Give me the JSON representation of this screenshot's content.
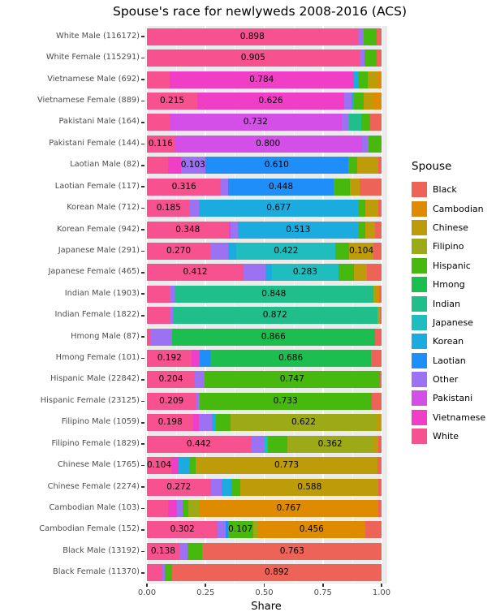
{
  "chart_data": {
    "type": "bar",
    "subtype": "horizontal-stacked-fill",
    "title": "Spouse's race for newlyweds 2008-2016 (ACS)",
    "xlabel": "Share",
    "xlim": [
      0,
      1
    ],
    "x_ticks": [
      {
        "value": 0.0,
        "label": "0.00"
      },
      {
        "value": 0.25,
        "label": "0.25"
      },
      {
        "value": 0.5,
        "label": "0.50"
      },
      {
        "value": 0.75,
        "label": "0.75"
      },
      {
        "value": 1.0,
        "label": "1.00"
      }
    ],
    "grid": {
      "panel_bg": "#EBEBEB",
      "major": "#FFFFFF",
      "minor": "#FFFFFF",
      "minor_ticks": [
        0.125,
        0.375,
        0.625,
        0.875
      ]
    },
    "segment_label_threshold": 0.1,
    "legend_title": "Spouse",
    "legend": [
      {
        "name": "Black",
        "color": "#ED6358"
      },
      {
        "name": "Cambodian",
        "color": "#DE8B00"
      },
      {
        "name": "Chinese",
        "color": "#BD9B09"
      },
      {
        "name": "Filipino",
        "color": "#9DAA17"
      },
      {
        "name": "Hispanic",
        "color": "#47B80E"
      },
      {
        "name": "Hmong",
        "color": "#1CBE4F"
      },
      {
        "name": "Indian",
        "color": "#20BE8A"
      },
      {
        "name": "Japanese",
        "color": "#1FBDBE"
      },
      {
        "name": "Korean",
        "color": "#1BABDF"
      },
      {
        "name": "Laotian",
        "color": "#1F8EF9"
      },
      {
        "name": "Other",
        "color": "#9C72F2"
      },
      {
        "name": "Pakistani",
        "color": "#D44FE8"
      },
      {
        "name": "Vietnamese",
        "color": "#F13EC6"
      },
      {
        "name": "White",
        "color": "#F8518F"
      }
    ],
    "stack_order_left_to_right": [
      "White",
      "Vietnamese",
      "Pakistani",
      "Other",
      "Laotian",
      "Korean",
      "Japanese",
      "Indian",
      "Hmong",
      "Hispanic",
      "Filipino",
      "Chinese",
      "Cambodian",
      "Black"
    ],
    "rows": [
      {
        "label": "White Male (116172)",
        "segments": [
          {
            "race": "White",
            "value": 0.898
          },
          {
            "race": "Other",
            "value": 0.026
          },
          {
            "race": "Hispanic",
            "value": 0.057
          },
          {
            "race": "Black",
            "value": 0.019
          }
        ]
      },
      {
        "label": "White Female (115291)",
        "segments": [
          {
            "race": "White",
            "value": 0.905
          },
          {
            "race": "Other",
            "value": 0.021
          },
          {
            "race": "Hispanic",
            "value": 0.053
          },
          {
            "race": "Black",
            "value": 0.021
          }
        ]
      },
      {
        "label": "Vietnamese Male (692)",
        "segments": [
          {
            "race": "White",
            "value": 0.097
          },
          {
            "race": "Vietnamese",
            "value": 0.784
          },
          {
            "race": "Korean",
            "value": 0.02
          },
          {
            "race": "Hispanic",
            "value": 0.041
          },
          {
            "race": "Chinese",
            "value": 0.045
          },
          {
            "race": "Cambodian",
            "value": 0.013
          }
        ]
      },
      {
        "label": "Vietnamese Female (889)",
        "segments": [
          {
            "race": "White",
            "value": 0.215
          },
          {
            "race": "Vietnamese",
            "value": 0.626
          },
          {
            "race": "Other",
            "value": 0.03
          },
          {
            "race": "Korean",
            "value": 0.012
          },
          {
            "race": "Hispanic",
            "value": 0.04
          },
          {
            "race": "Chinese",
            "value": 0.04
          },
          {
            "race": "Cambodian",
            "value": 0.037
          }
        ]
      },
      {
        "label": "Pakistani Male (164)",
        "segments": [
          {
            "race": "White",
            "value": 0.097
          },
          {
            "race": "Pakistani",
            "value": 0.732
          },
          {
            "race": "Other",
            "value": 0.032
          },
          {
            "race": "Indian",
            "value": 0.052
          },
          {
            "race": "Hispanic",
            "value": 0.037
          },
          {
            "race": "Black",
            "value": 0.05
          }
        ]
      },
      {
        "label": "Pakistani Female (144)",
        "segments": [
          {
            "race": "White",
            "value": 0.116
          },
          {
            "race": "Pakistani",
            "value": 0.8
          },
          {
            "race": "Other",
            "value": 0.03
          },
          {
            "race": "Hispanic",
            "value": 0.054
          }
        ]
      },
      {
        "label": "Laotian Male (82)",
        "segments": [
          {
            "race": "White",
            "value": 0.09
          },
          {
            "race": "Vietnamese",
            "value": 0.055
          },
          {
            "race": "Other",
            "value": 0.103
          },
          {
            "race": "Laotian",
            "value": 0.61
          },
          {
            "race": "Hispanic",
            "value": 0.038
          },
          {
            "race": "Chinese",
            "value": 0.089
          },
          {
            "race": "Black",
            "value": 0.015
          }
        ]
      },
      {
        "label": "Laotian Female (117)",
        "segments": [
          {
            "race": "White",
            "value": 0.316
          },
          {
            "race": "Other",
            "value": 0.031
          },
          {
            "race": "Laotian",
            "value": 0.448
          },
          {
            "race": "Hispanic",
            "value": 0.069
          },
          {
            "race": "Chinese",
            "value": 0.041
          },
          {
            "race": "Black",
            "value": 0.095
          }
        ]
      },
      {
        "label": "Korean Male (712)",
        "segments": [
          {
            "race": "White",
            "value": 0.185
          },
          {
            "race": "Other",
            "value": 0.038
          },
          {
            "race": "Korean",
            "value": 0.677
          },
          {
            "race": "Hispanic",
            "value": 0.03
          },
          {
            "race": "Chinese",
            "value": 0.055
          },
          {
            "race": "Black",
            "value": 0.015
          }
        ]
      },
      {
        "label": "Korean Female (942)",
        "segments": [
          {
            "race": "White",
            "value": 0.348
          },
          {
            "race": "Vietnamese",
            "value": 0.01
          },
          {
            "race": "Other",
            "value": 0.03
          },
          {
            "race": "Korean",
            "value": 0.513
          },
          {
            "race": "Hispanic",
            "value": 0.03
          },
          {
            "race": "Chinese",
            "value": 0.042
          },
          {
            "race": "Black",
            "value": 0.027
          }
        ]
      },
      {
        "label": "Japanese Male (291)",
        "segments": [
          {
            "race": "White",
            "value": 0.27
          },
          {
            "race": "Other",
            "value": 0.077
          },
          {
            "race": "Korean",
            "value": 0.035
          },
          {
            "race": "Japanese",
            "value": 0.422
          },
          {
            "race": "Hispanic",
            "value": 0.058
          },
          {
            "race": "Chinese",
            "value": 0.104
          },
          {
            "race": "Black",
            "value": 0.034
          }
        ]
      },
      {
        "label": "Japanese Female (465)",
        "segments": [
          {
            "race": "White",
            "value": 0.412
          },
          {
            "race": "Other",
            "value": 0.092
          },
          {
            "race": "Korean",
            "value": 0.029
          },
          {
            "race": "Japanese",
            "value": 0.283
          },
          {
            "race": "Hispanic",
            "value": 0.066
          },
          {
            "race": "Chinese",
            "value": 0.057
          },
          {
            "race": "Black",
            "value": 0.061
          }
        ]
      },
      {
        "label": "Indian Male (1903)",
        "segments": [
          {
            "race": "White",
            "value": 0.098
          },
          {
            "race": "Other",
            "value": 0.019
          },
          {
            "race": "Indian",
            "value": 0.848
          },
          {
            "race": "Filipino",
            "value": 0.015
          },
          {
            "race": "Cambodian",
            "value": 0.01
          },
          {
            "race": "Black",
            "value": 0.01
          }
        ]
      },
      {
        "label": "Indian Female (1822)",
        "segments": [
          {
            "race": "White",
            "value": 0.098
          },
          {
            "race": "Other",
            "value": 0.012
          },
          {
            "race": "Indian",
            "value": 0.872
          },
          {
            "race": "Filipino",
            "value": 0.01
          },
          {
            "race": "Black",
            "value": 0.008
          }
        ]
      },
      {
        "label": "Hmong Male (87)",
        "segments": [
          {
            "race": "White",
            "value": 0.015
          },
          {
            "race": "Other",
            "value": 0.091
          },
          {
            "race": "Hmong",
            "value": 0.866
          },
          {
            "race": "Black",
            "value": 0.028
          }
        ]
      },
      {
        "label": "Hmong Female (101)",
        "segments": [
          {
            "race": "White",
            "value": 0.192
          },
          {
            "race": "Vietnamese",
            "value": 0.033
          },
          {
            "race": "Laotian",
            "value": 0.045
          },
          {
            "race": "Hmong",
            "value": 0.686
          },
          {
            "race": "Black",
            "value": 0.044
          }
        ]
      },
      {
        "label": "Hispanic Male (22842)",
        "segments": [
          {
            "race": "White",
            "value": 0.204
          },
          {
            "race": "Other",
            "value": 0.041
          },
          {
            "race": "Hispanic",
            "value": 0.747
          },
          {
            "race": "Black",
            "value": 0.008
          }
        ]
      },
      {
        "label": "Hispanic Female (23125)",
        "segments": [
          {
            "race": "White",
            "value": 0.209
          },
          {
            "race": "Other",
            "value": 0.015
          },
          {
            "race": "Hispanic",
            "value": 0.733
          },
          {
            "race": "Black",
            "value": 0.043
          }
        ]
      },
      {
        "label": "Filipino Male (1059)",
        "segments": [
          {
            "race": "White",
            "value": 0.198
          },
          {
            "race": "Vietnamese",
            "value": 0.023
          },
          {
            "race": "Other",
            "value": 0.055
          },
          {
            "race": "Korean",
            "value": 0.018
          },
          {
            "race": "Hispanic",
            "value": 0.063
          },
          {
            "race": "Filipino",
            "value": 0.622
          },
          {
            "race": "Chinese",
            "value": 0.021
          }
        ]
      },
      {
        "label": "Filipino Female (1829)",
        "segments": [
          {
            "race": "White",
            "value": 0.442
          },
          {
            "race": "Other",
            "value": 0.058
          },
          {
            "race": "Japanese",
            "value": 0.014
          },
          {
            "race": "Hispanic",
            "value": 0.086
          },
          {
            "race": "Filipino",
            "value": 0.362
          },
          {
            "race": "Chinese",
            "value": 0.023
          },
          {
            "race": "Black",
            "value": 0.015
          }
        ]
      },
      {
        "label": "Chinese Male (1765)",
        "segments": [
          {
            "race": "White",
            "value": 0.104
          },
          {
            "race": "Vietnamese",
            "value": 0.031
          },
          {
            "race": "Korean",
            "value": 0.045
          },
          {
            "race": "Hispanic",
            "value": 0.029
          },
          {
            "race": "Chinese",
            "value": 0.773
          },
          {
            "race": "Black",
            "value": 0.018
          }
        ]
      },
      {
        "label": "Chinese Female (2274)",
        "segments": [
          {
            "race": "White",
            "value": 0.272
          },
          {
            "race": "Other",
            "value": 0.046
          },
          {
            "race": "Korean",
            "value": 0.041
          },
          {
            "race": "Hispanic",
            "value": 0.04
          },
          {
            "race": "Chinese",
            "value": 0.588
          },
          {
            "race": "Black",
            "value": 0.013
          }
        ]
      },
      {
        "label": "Cambodian Male (103)",
        "segments": [
          {
            "race": "White",
            "value": 0.089
          },
          {
            "race": "Vietnamese",
            "value": 0.04
          },
          {
            "race": "Other",
            "value": 0.023
          },
          {
            "race": "Hispanic",
            "value": 0.023
          },
          {
            "race": "Filipino",
            "value": 0.046
          },
          {
            "race": "Cambodian",
            "value": 0.767
          },
          {
            "race": "Black",
            "value": 0.012
          }
        ]
      },
      {
        "label": "Cambodian Female (152)",
        "segments": [
          {
            "race": "White",
            "value": 0.302
          },
          {
            "race": "Other",
            "value": 0.035
          },
          {
            "race": "Laotian",
            "value": 0.008
          },
          {
            "race": "Hispanic",
            "value": 0.107
          },
          {
            "race": "Filipino",
            "value": 0.022
          },
          {
            "race": "Cambodian",
            "value": 0.456
          },
          {
            "race": "Black",
            "value": 0.07
          }
        ]
      },
      {
        "label": "Black Male (13192)",
        "segments": [
          {
            "race": "White",
            "value": 0.138
          },
          {
            "race": "Other",
            "value": 0.036
          },
          {
            "race": "Hispanic",
            "value": 0.063
          },
          {
            "race": "Black",
            "value": 0.763
          }
        ]
      },
      {
        "label": "Black Female (11370)",
        "segments": [
          {
            "race": "White",
            "value": 0.067
          },
          {
            "race": "Other",
            "value": 0.01
          },
          {
            "race": "Hispanic",
            "value": 0.031
          },
          {
            "race": "Black",
            "value": 0.892
          }
        ]
      }
    ]
  }
}
